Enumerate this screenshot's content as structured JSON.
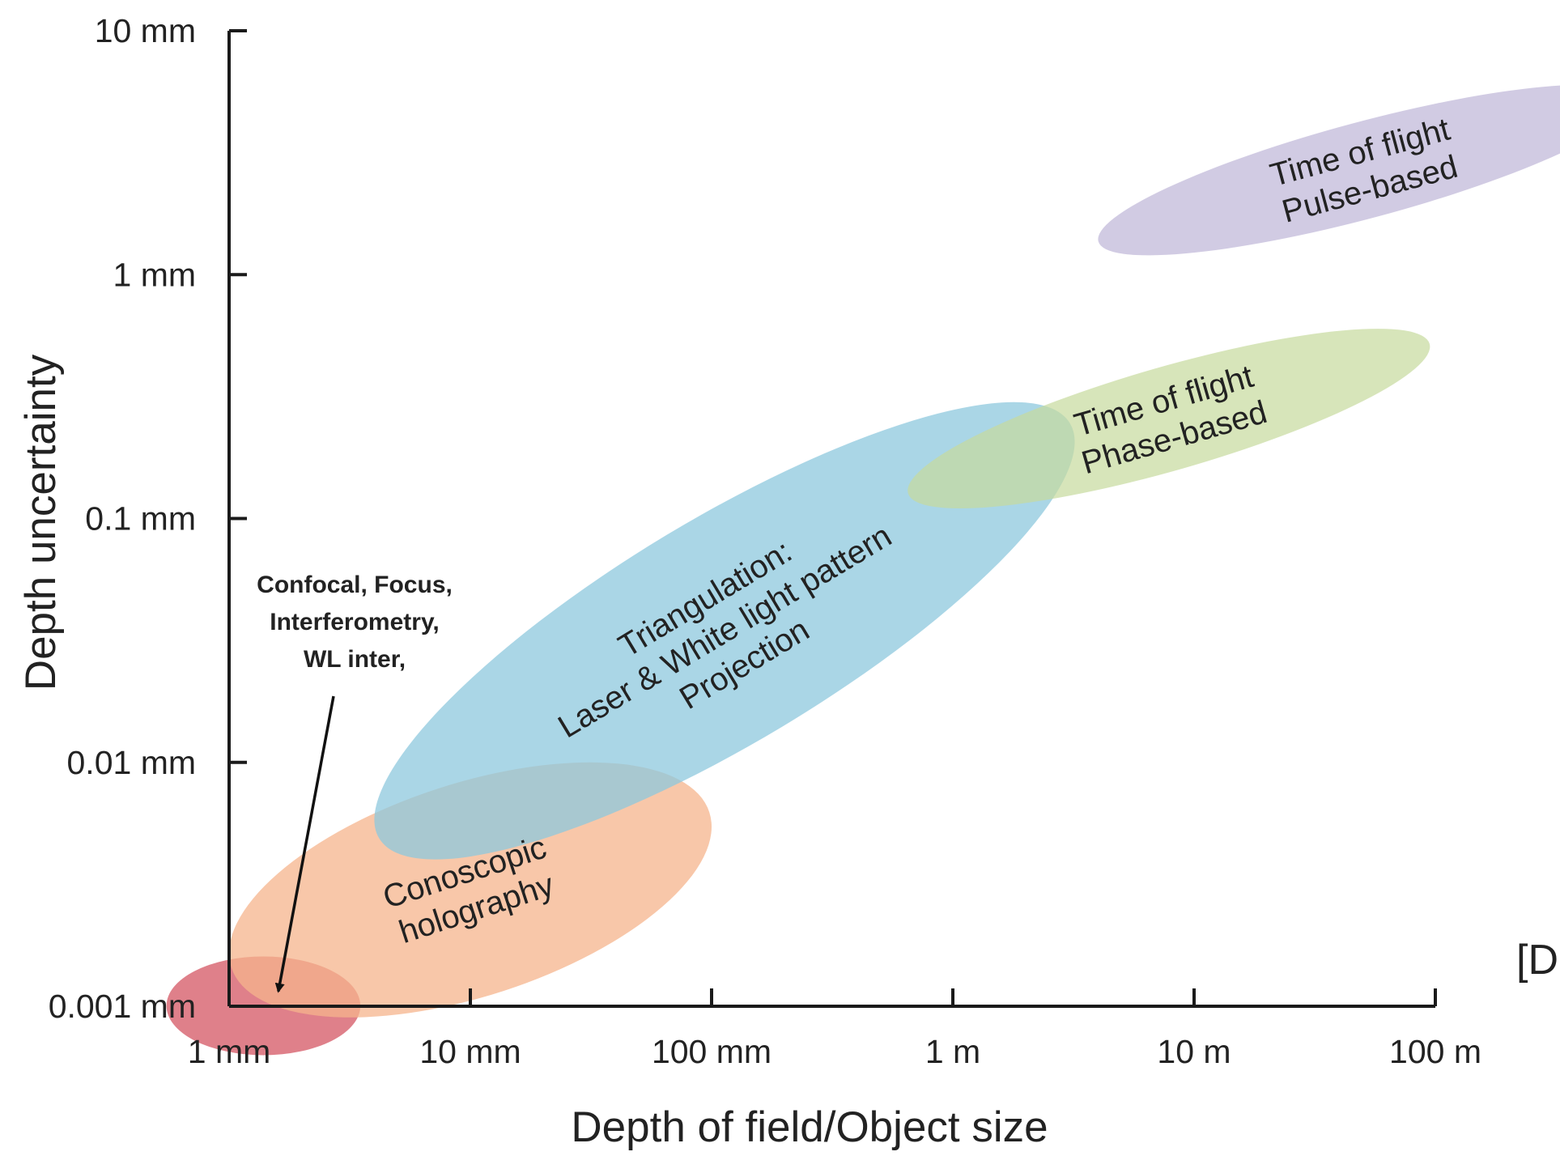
{
  "chart_data": {
    "type": "scatter",
    "title": "",
    "xlabel": "Depth of field/Object size",
    "ylabel": "Depth uncertainty",
    "x_scale": "log",
    "y_scale": "log",
    "x_unit": "mm",
    "y_unit": "mm",
    "xlim": [
      1,
      100000
    ],
    "ylim": [
      0.001,
      10
    ],
    "grid": false,
    "x_ticks": [
      {
        "value": 1,
        "label": "1 mm"
      },
      {
        "value": 10,
        "label": "10 mm"
      },
      {
        "value": 100,
        "label": "100 mm"
      },
      {
        "value": 1000,
        "label": "1 m"
      },
      {
        "value": 10000,
        "label": "10 m"
      },
      {
        "value": 100000,
        "label": "100 m"
      }
    ],
    "y_ticks": [
      {
        "value": 0.001,
        "label": "0.001 mm"
      },
      {
        "value": 0.01,
        "label": "0.01 mm"
      },
      {
        "value": 0.1,
        "label": "0.1 mm"
      },
      {
        "value": 1,
        "label": "1 mm"
      },
      {
        "value": 10,
        "label": "10 mm"
      }
    ],
    "regions": [
      {
        "id": "confocal",
        "lines": [],
        "color": "#d96a75",
        "opacity": 0.85,
        "x_range": [
          0.55,
          3.5
        ],
        "y_range": [
          0.00063,
          0.0016
        ],
        "angle": 0
      },
      {
        "id": "conoscopic",
        "lines": [
          "Conoscopic",
          "holography"
        ],
        "color": "#f6b48c",
        "opacity": 0.75,
        "x_range": [
          1,
          100
        ],
        "y_range": [
          0.0009,
          0.01
        ],
        "angle": -18
      },
      {
        "id": "triangulation",
        "lines": [
          "Triangulation:",
          "Laser & White light pattern",
          "Projection"
        ],
        "color": "#8ec8dd",
        "opacity": 0.75,
        "x_range": [
          4,
          3200
        ],
        "y_range": [
          0.004,
          0.3
        ],
        "angle": -31
      },
      {
        "id": "tof-phase",
        "lines": [
          "Time of flight",
          "Phase-based"
        ],
        "color": "#c6da9c",
        "opacity": 0.7,
        "x_range": [
          650,
          95000
        ],
        "y_range": [
          0.11,
          0.6
        ],
        "angle": -16
      },
      {
        "id": "tof-pulse",
        "lines": [
          "Time of flight",
          "Pulse-based"
        ],
        "color": "#c6bedc",
        "opacity": 0.8,
        "x_range": [
          4000,
          650000
        ],
        "y_range": [
          1.2,
          6
        ],
        "angle": -15
      }
    ],
    "annotations": [
      {
        "id": "confocal-annotation",
        "lines": [
          "Confocal, Focus,",
          "Interferometry,",
          "WL inter,"
        ],
        "arrow_to": {
          "x": 1.6,
          "y": 0.00115
        }
      }
    ],
    "cutoff_text": "[D"
  }
}
